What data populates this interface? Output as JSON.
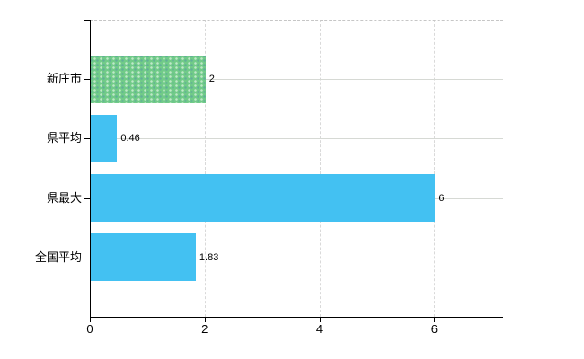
{
  "chart_data": {
    "type": "bar",
    "orientation": "horizontal",
    "title": "",
    "xlabel": "",
    "ylabel": "",
    "categories": [
      "新庄市",
      "県平均",
      "県最大",
      "全国平均"
    ],
    "values": [
      2,
      0.46,
      6,
      1.83
    ],
    "value_labels": [
      "2",
      "0.46",
      "6",
      "1.83"
    ],
    "bar_colors": [
      "#71cb88",
      "#43c1f2",
      "#43c1f2",
      "#43c1f2"
    ],
    "bar_patterns": [
      "dots",
      "none",
      "none",
      "none"
    ],
    "x_ticks": [
      0,
      2,
      4,
      6
    ],
    "x_tick_labels": [
      "0",
      "2",
      "4",
      "6"
    ],
    "xlim": [
      0,
      7.2
    ],
    "grid": true,
    "legend": false
  },
  "colors": {
    "bar_blue": "#43c1f2",
    "bar_green": "#71cb88",
    "gridline": "#d9d9d9",
    "top_border": "#c6c6c6",
    "axis": "#000000",
    "text": "#000000",
    "background": "#ffffff"
  }
}
